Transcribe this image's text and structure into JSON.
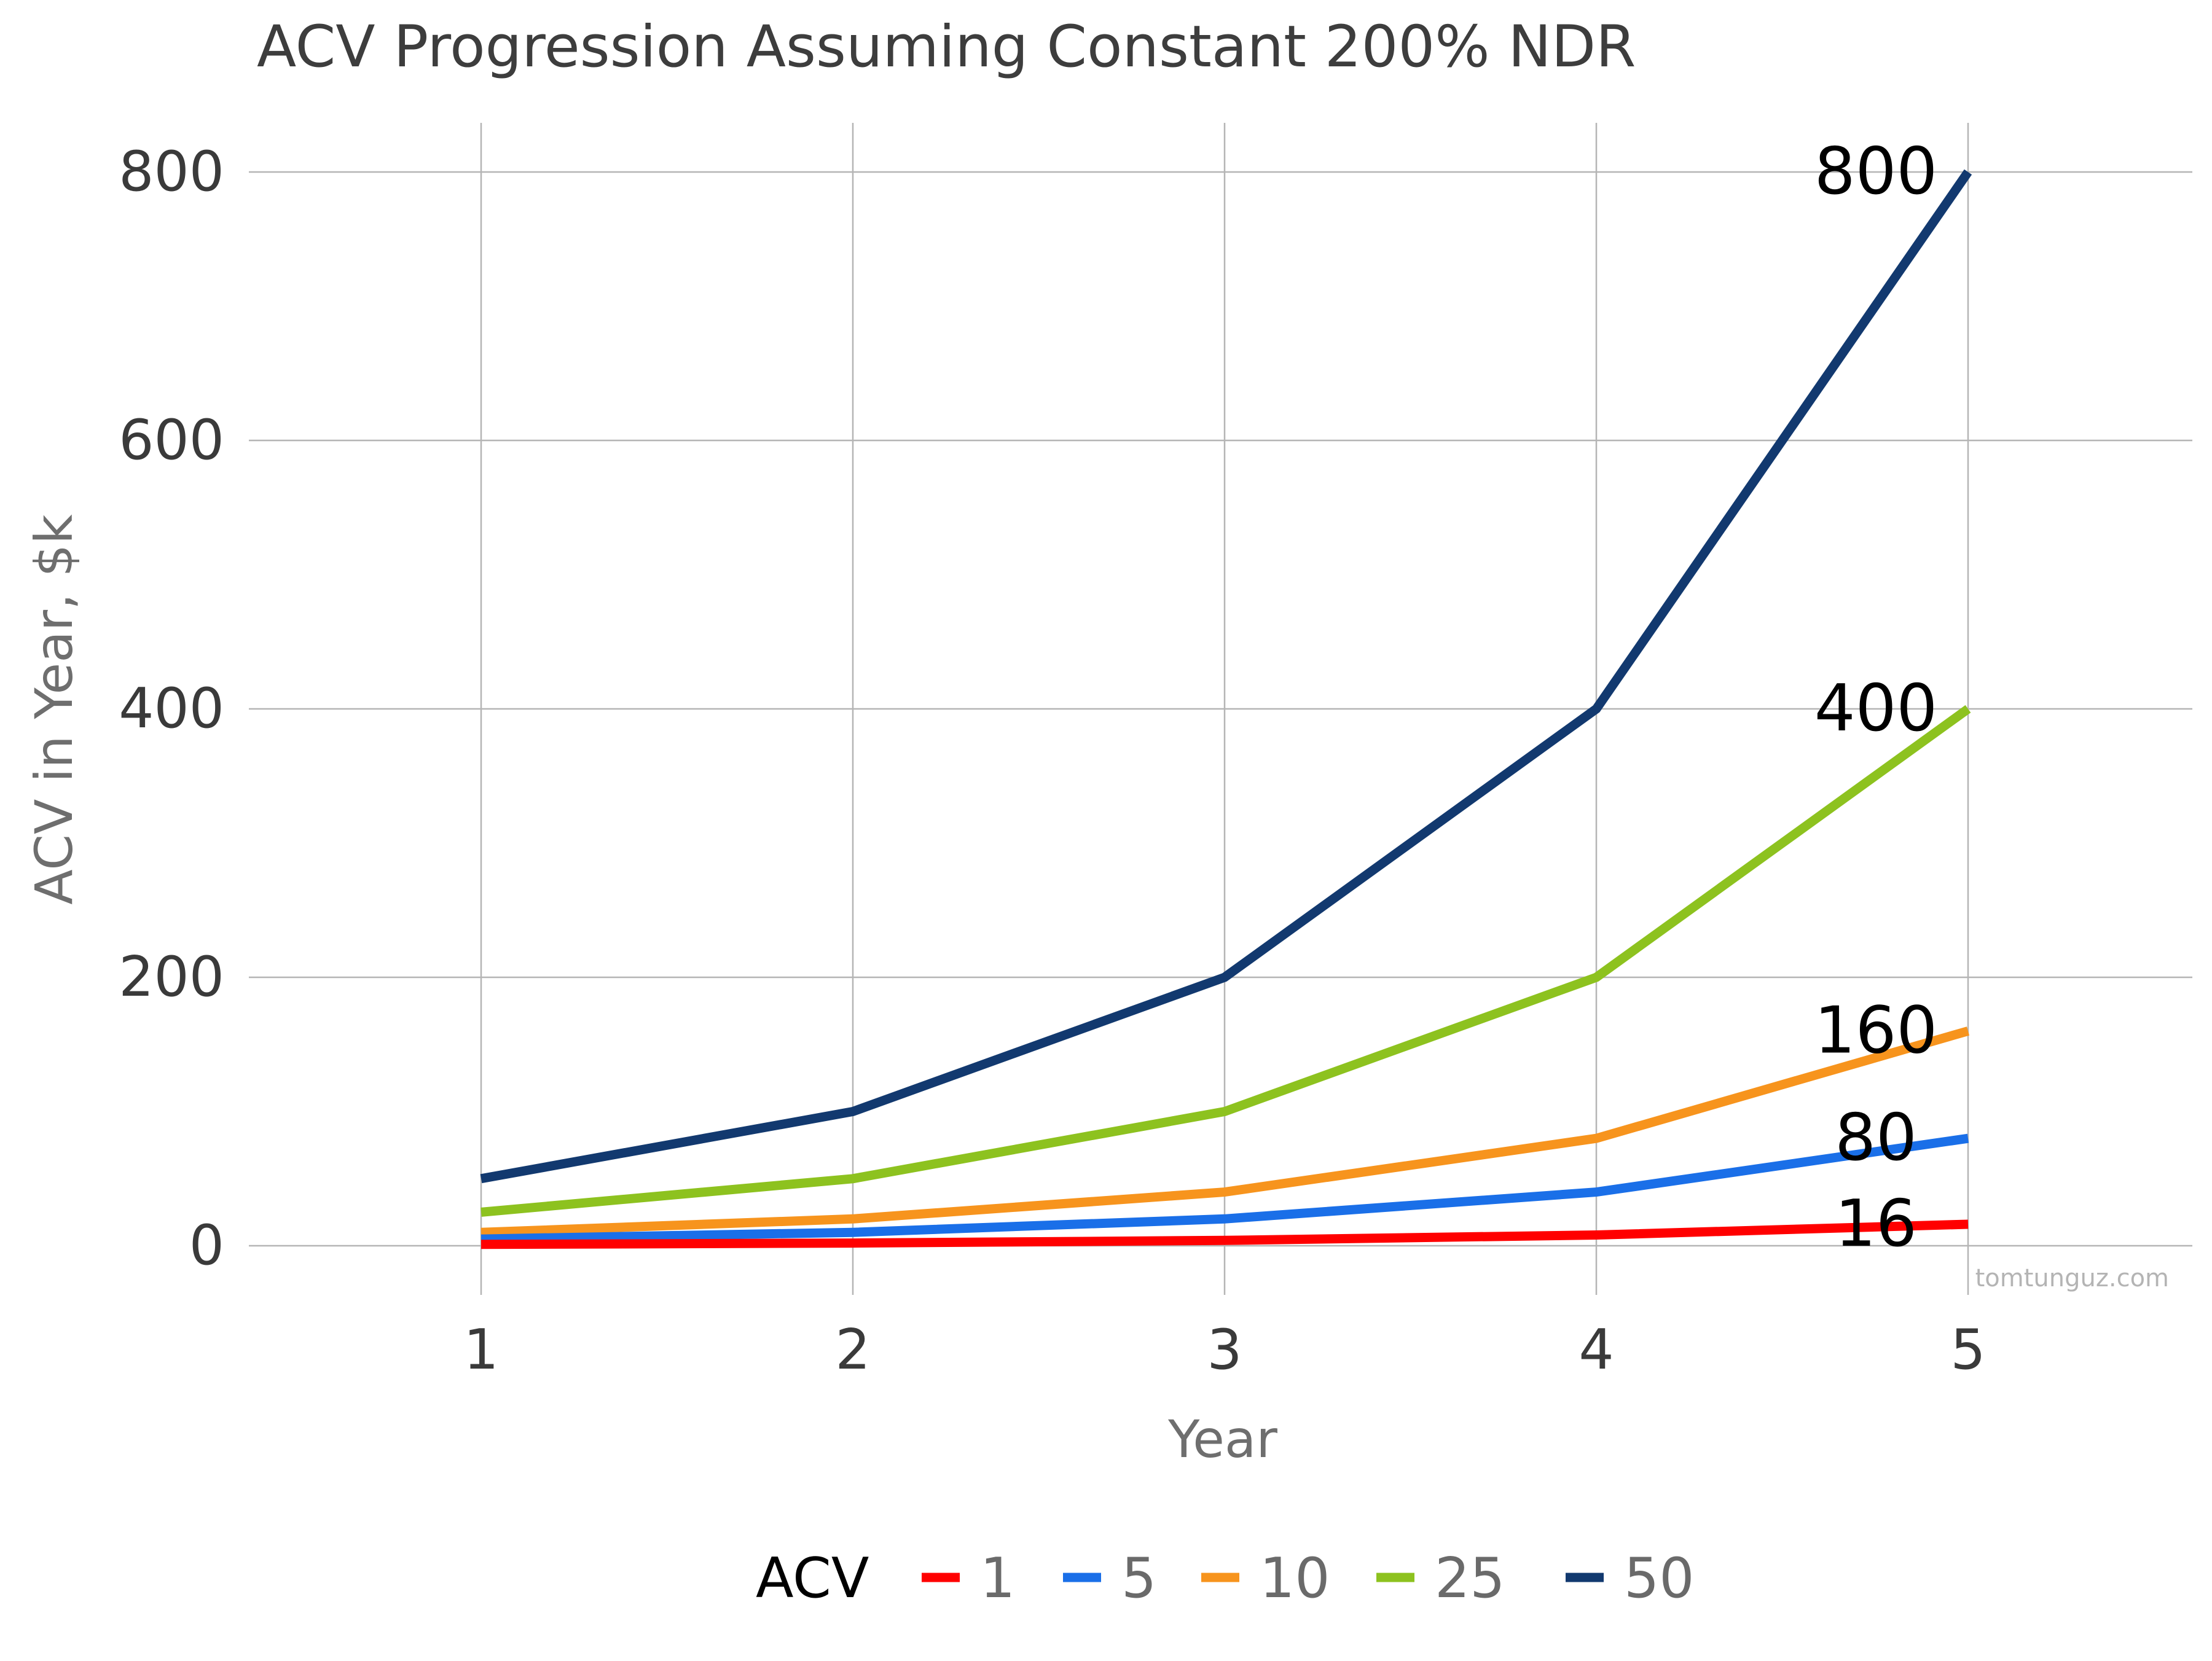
{
  "chart_data": {
    "type": "line",
    "title": "ACV Progression Assuming Constant 200% NDR",
    "xlabel": "Year",
    "ylabel": "ACV in Year, $k",
    "x": [
      1,
      2,
      3,
      4,
      5
    ],
    "x_tick_labels": [
      "1",
      "2",
      "3",
      "4",
      "5"
    ],
    "ylim": [
      0,
      800
    ],
    "y_ticks": [
      0,
      200,
      400,
      600,
      800
    ],
    "y_tick_labels": [
      "0",
      "200",
      "400",
      "600",
      "800"
    ],
    "grid": true,
    "legend": {
      "title": "ACV",
      "placement": "bottom"
    },
    "series": [
      {
        "name": "1",
        "color": "#ff0000",
        "values": [
          1,
          2,
          4,
          8,
          16
        ],
        "end_label": "16"
      },
      {
        "name": "5",
        "color": "#1a6fe8",
        "values": [
          5,
          10,
          20,
          40,
          80
        ],
        "end_label": "80"
      },
      {
        "name": "10",
        "color": "#f7941d",
        "values": [
          10,
          20,
          40,
          80,
          160
        ],
        "end_label": "160"
      },
      {
        "name": "25",
        "color": "#8dc21f",
        "values": [
          25,
          50,
          100,
          200,
          400
        ],
        "end_label": "400"
      },
      {
        "name": "50",
        "color": "#12396f",
        "values": [
          50,
          100,
          200,
          400,
          800
        ],
        "end_label": "800"
      }
    ],
    "watermark": "tomtunguz.com"
  }
}
